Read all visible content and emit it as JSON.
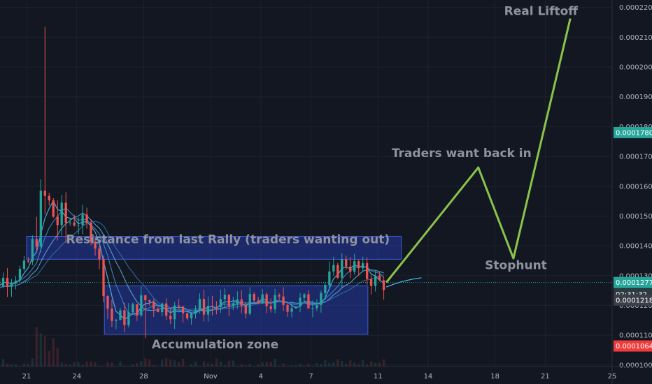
{
  "chart_data": {
    "type": "candlestick",
    "ylim": [
      9.95e-05,
      0.0002225
    ],
    "y_ticks": [
      0.0001,
      0.00011,
      0.00012,
      0.00013,
      0.00014,
      0.00015,
      0.00016,
      0.00017,
      0.00018,
      0.00019,
      0.0002,
      0.00021,
      0.00022
    ],
    "y_tick_labels": [
      "0.0001000",
      "0.0001100",
      "0.0001200",
      "0.0001300",
      "0.0001400",
      "0.0001500",
      "0.0001600",
      "0.0001700",
      "0.0001800",
      "0.0001900",
      "0.0002000",
      "0.0002100",
      "0.0002200"
    ],
    "x_range": [
      18.1,
      28.75
    ],
    "x_ticks": [
      {
        "value": 21,
        "label": "21"
      },
      {
        "value": 24,
        "label": "24"
      },
      {
        "value": 28,
        "label": "28"
      },
      {
        "value": 32,
        "label": "Nov"
      },
      {
        "value": 35,
        "label": "4"
      },
      {
        "value": 38,
        "label": "7"
      },
      {
        "value": 42,
        "label": "11"
      },
      {
        "value": 45,
        "label": "14"
      },
      {
        "value": 49,
        "label": "18"
      },
      {
        "value": 52,
        "label": "21"
      },
      {
        "value": 56,
        "label": "25"
      }
    ],
    "price_tags": [
      {
        "value": 0.000178,
        "label": "0.0001780",
        "color": "#26a69a"
      },
      {
        "value": 0.0001277,
        "label": "0.0001277",
        "color": "#26a69a"
      },
      {
        "value": 0.0001238,
        "label": "02:31:32",
        "color": "#2f3a40"
      },
      {
        "value": 0.0001218,
        "label": "0.0001218",
        "color": "#3a3e48"
      },
      {
        "value": 0.0001064,
        "label": "0.0001064",
        "color": "#ef3b3b"
      }
    ],
    "current_price": 0.0001277,
    "boxes": [
      {
        "name": "resistance",
        "x0": 21.0,
        "x1": 43.4,
        "y0": 0.0001355,
        "y1": 0.0001432,
        "label": "Resistance from last Rally (traders wanting out)"
      },
      {
        "name": "accumulation",
        "x0": 25.65,
        "x1": 41.4,
        "y0": 0.0001103,
        "y1": 0.0001266,
        "label": "Accumulation zone"
      }
    ],
    "projection": [
      [
        42.5,
        0.0001277
      ],
      [
        48.0,
        0.0001663
      ],
      [
        50.1,
        0.0001358
      ],
      [
        53.5,
        0.0002163
      ]
    ],
    "annotations": [
      {
        "text": "Real Liftoff",
        "x": 51.75,
        "y": 0.0002175
      },
      {
        "text": "Traders want back in",
        "x": 47.0,
        "y": 0.0001698
      },
      {
        "text": "Stophunt",
        "x": 50.25,
        "y": 0.0001322
      }
    ],
    "candles_summary": [
      {
        "date": "Oct 21",
        "open": 0.0001285,
        "high": 0.000133,
        "low": 0.000126,
        "close": 0.000132
      },
      {
        "date": "Oct 22",
        "open": 0.000132,
        "high": 0.0002135,
        "low": 0.000129,
        "close": 0.000156
      },
      {
        "date": "Oct 23",
        "open": 0.000156,
        "high": 0.000167,
        "low": 0.000143,
        "close": 0.000147
      },
      {
        "date": "Oct 24",
        "open": 0.000147,
        "high": 0.000151,
        "low": 0.000144,
        "close": 0.000149
      },
      {
        "date": "Oct 25",
        "open": 0.000149,
        "high": 0.000151,
        "low": 0.000143,
        "close": 0.000144
      },
      {
        "date": "Oct 26",
        "open": 0.000144,
        "high": 0.000146,
        "low": 0.00011,
        "close": 0.000115
      },
      {
        "date": "Oct 27",
        "open": 0.000115,
        "high": 0.000119,
        "low": 0.000112,
        "close": 0.000116
      },
      {
        "date": "Oct 28",
        "open": 0.000116,
        "high": 0.000126,
        "low": 0.00011,
        "close": 0.000122
      },
      {
        "date": "Oct 30",
        "open": 0.000122,
        "high": 0.000124,
        "low": 0.000115,
        "close": 0.000118
      },
      {
        "date": "Nov 1",
        "open": 0.000118,
        "high": 0.000125,
        "low": 0.000117,
        "close": 0.00012
      },
      {
        "date": "Nov 4",
        "open": 0.00012,
        "high": 0.000122,
        "low": 0.000118,
        "close": 0.0001205
      },
      {
        "date": "Nov 7",
        "open": 0.0001205,
        "high": 0.000123,
        "low": 0.000118,
        "close": 0.000121
      },
      {
        "date": "Nov 9",
        "open": 0.000121,
        "high": 0.000139,
        "low": 0.00012,
        "close": 0.000135
      },
      {
        "date": "Nov 11",
        "open": 0.000135,
        "high": 0.000136,
        "low": 0.000126,
        "close": 0.0001277
      }
    ]
  }
}
